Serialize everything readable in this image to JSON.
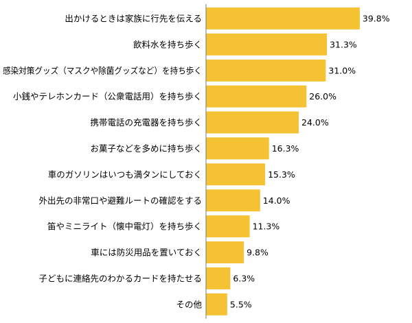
{
  "chart_data": {
    "type": "bar",
    "orientation": "horizontal",
    "title": "",
    "xlabel": "",
    "ylabel": "",
    "unit": "%",
    "xlim": [
      0,
      40
    ],
    "grid": false,
    "legend": "none",
    "bar_color": "#F4C232",
    "categories": [
      "出かけるときは家族に行先を伝える",
      "飲料水を持ち歩く",
      "感染対策グッズ（マスクや除菌グッズなど）を持ち歩く",
      "小銭やテレホンカード（公衆電話用）を持ち歩く",
      "携帯電話の充電器を持ち歩く",
      "お菓子などを多めに持ち歩く",
      "車のガソリンはいつも満タンにしておく",
      "外出先の非常口や避難ルートの確認をする",
      "笛やミニライト（懐中電灯）を持ち歩く",
      "車には防災用品を置いておく",
      "子どもに連絡先のわかるカードを持たせる",
      "その他"
    ],
    "values": [
      39.8,
      31.3,
      31.0,
      26.0,
      24.0,
      16.3,
      15.3,
      14.0,
      11.3,
      9.8,
      6.3,
      5.5
    ],
    "value_labels": [
      "39.8%",
      "31.3%",
      "31.0%",
      "26.0%",
      "24.0%",
      "16.3%",
      "15.3%",
      "14.0%",
      "11.3%",
      "9.8%",
      "6.3%",
      "5.5%"
    ]
  }
}
